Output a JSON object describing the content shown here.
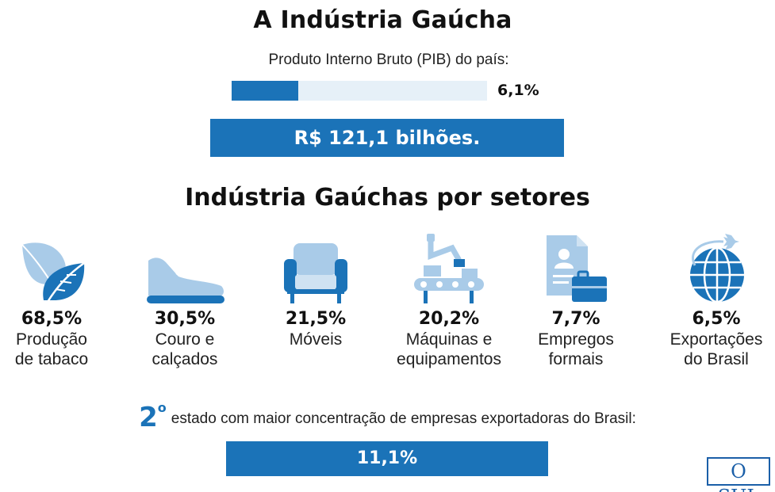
{
  "title": "A Indústria Gaúcha",
  "pib": {
    "label": "Produto Interno Bruto (PIB) do país:",
    "value_text": "6,1%",
    "fill_percent": 26
  },
  "total": "R$ 121,1 bilhões.",
  "subtitle": "Indústria Gaúchas por setores",
  "sectors": [
    {
      "icon": "leaf-icon",
      "pct": "68,5%",
      "line1": "Produção",
      "line2": "de tabaco"
    },
    {
      "icon": "shoe-icon",
      "pct": "30,5%",
      "line1": "Couro e",
      "line2": "calçados"
    },
    {
      "icon": "armchair-icon",
      "pct": "21,5%",
      "line1": "Móveis",
      "line2": ""
    },
    {
      "icon": "robot-arm-icon",
      "pct": "20,2%",
      "line1": "Máquinas e",
      "line2": "equipamentos"
    },
    {
      "icon": "employment-document-icon",
      "pct": "7,7%",
      "line1": "Empregos",
      "line2": "formais"
    },
    {
      "icon": "globe-plane-icon",
      "pct": "6,5%",
      "line1": "Exportações",
      "line2": "do Brasil"
    }
  ],
  "rank": {
    "number": "2",
    "ordinal": "o",
    "text": "estado com maior concentração de empresas exportadoras do Brasil:"
  },
  "share": "11,1%",
  "logo": "O SUL",
  "colors": {
    "accent": "#1b73b8",
    "light": "#e6f0f8",
    "icon_light": "#a9cbe8"
  }
}
